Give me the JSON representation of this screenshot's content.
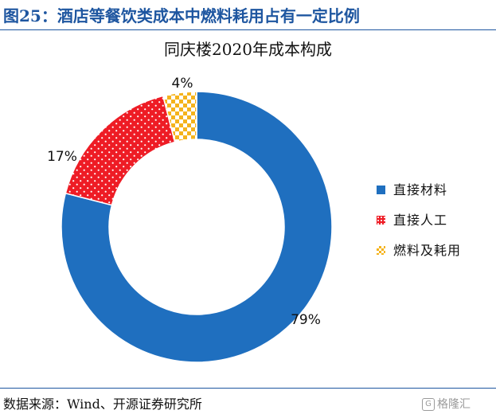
{
  "figure_title": "图25：酒店等餐饮类成本中燃料耗用占有一定比例",
  "source": "数据来源：Wind、开源证券研究所",
  "watermark": {
    "icon": "G",
    "text": "格隆汇"
  },
  "colors": {
    "accent": "#1e56a0",
    "direct_material": "#1f6fbf",
    "direct_labor": "#ee1c25",
    "fuel": "#f5b31c"
  },
  "chart_data": {
    "type": "pie",
    "style": "donut",
    "title": "同庆楼2020年成本构成",
    "legend_position": "right",
    "slices": [
      {
        "name": "直接材料",
        "value": 79,
        "label": "79%",
        "color": "#1f6fbf",
        "pattern": "solid"
      },
      {
        "name": "直接人工",
        "value": 17,
        "label": "17%",
        "color": "#ee1c25",
        "pattern": "dots"
      },
      {
        "name": "燃料及耗用",
        "value": 4,
        "label": "4%",
        "color": "#f5b31c",
        "pattern": "checker"
      }
    ]
  }
}
